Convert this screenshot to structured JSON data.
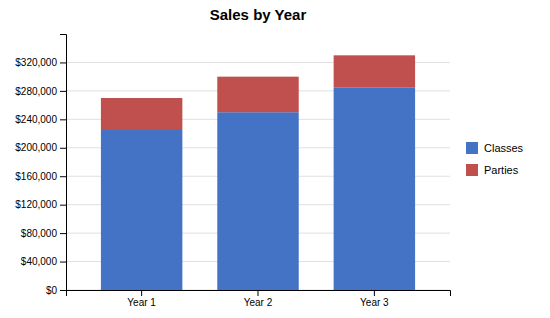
{
  "chart_data": {
    "type": "bar",
    "title": "Sales by Year",
    "categories": [
      "Year 1",
      "Year 2",
      "Year 3"
    ],
    "series": [
      {
        "name": "Classes",
        "color": "#4472C4",
        "values": [
          225000,
          250000,
          285000
        ]
      },
      {
        "name": "Parties",
        "color": "#C0504D",
        "values": [
          45000,
          50000,
          45000
        ]
      }
    ],
    "stacked": true,
    "ylim": [
      0,
      360000
    ],
    "yticks": [
      {
        "value": 0,
        "label": "$0"
      },
      {
        "value": 40000,
        "label": "$40,000"
      },
      {
        "value": 80000,
        "label": "$80,000"
      },
      {
        "value": 120000,
        "label": "$120,000"
      },
      {
        "value": 160000,
        "label": "$160,000"
      },
      {
        "value": 200000,
        "label": "$200,000"
      },
      {
        "value": 240000,
        "label": "$240,000"
      },
      {
        "value": 280000,
        "label": "$280,000"
      },
      {
        "value": 320000,
        "label": "$320,000"
      }
    ],
    "grid": true,
    "legend": "right"
  }
}
